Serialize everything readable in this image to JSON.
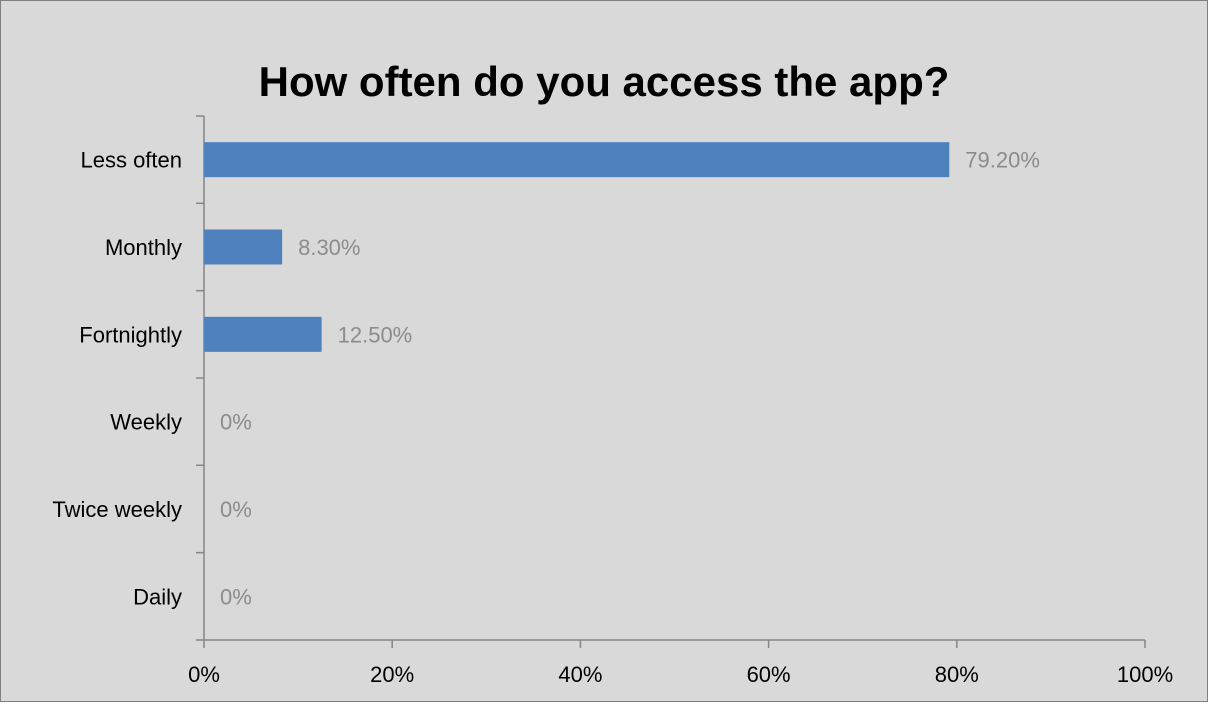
{
  "chart_data": {
    "type": "bar",
    "orientation": "horizontal",
    "title": "How often do you access the app?",
    "categories": [
      "Less often",
      "Monthly",
      "Fortnightly",
      "Weekly",
      "Twice weekly",
      "Daily"
    ],
    "values": [
      79.2,
      8.3,
      12.5,
      0,
      0,
      0
    ],
    "data_labels": [
      "79.20%",
      "8.30%",
      "12.50%",
      "0%",
      "0%",
      "0%"
    ],
    "xlim": [
      0,
      100
    ],
    "x_ticks": [
      0,
      20,
      40,
      60,
      80,
      100
    ],
    "x_tick_labels": [
      "0%",
      "20%",
      "40%",
      "60%",
      "80%",
      "100%"
    ],
    "grid": false,
    "legend": "none",
    "colors": {
      "background": "#d9d9d9",
      "border": "#7f7f7f",
      "bar": "#4f81bd",
      "axis": "#868686",
      "data_label": "#8c8c8c"
    }
  }
}
